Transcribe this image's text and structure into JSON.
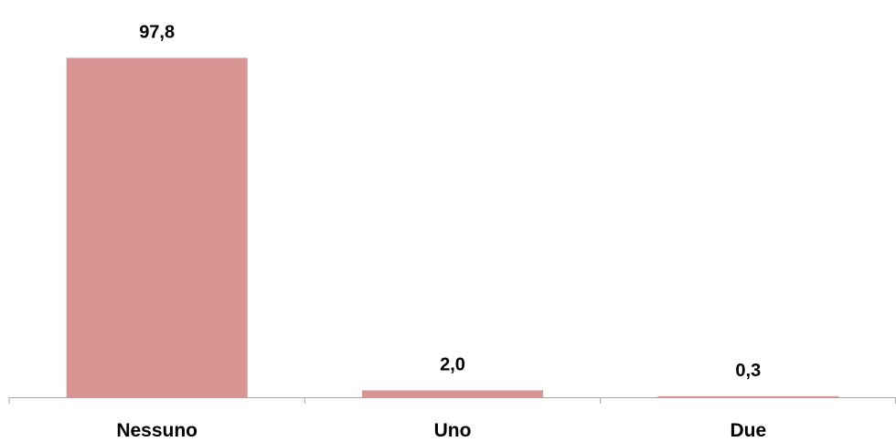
{
  "chart_data": {
    "type": "bar",
    "categories": [
      "Nessuno",
      "Uno",
      "Due"
    ],
    "values": [
      97.8,
      2.0,
      0.3
    ],
    "value_labels": [
      "97,8",
      "2,0",
      "0,3"
    ],
    "title": "",
    "xlabel": "",
    "ylabel": "",
    "ylim": [
      0,
      100
    ],
    "grid": false,
    "legend": "none",
    "bar_color": "#d99594",
    "axis_color": "#a6a6a6"
  }
}
